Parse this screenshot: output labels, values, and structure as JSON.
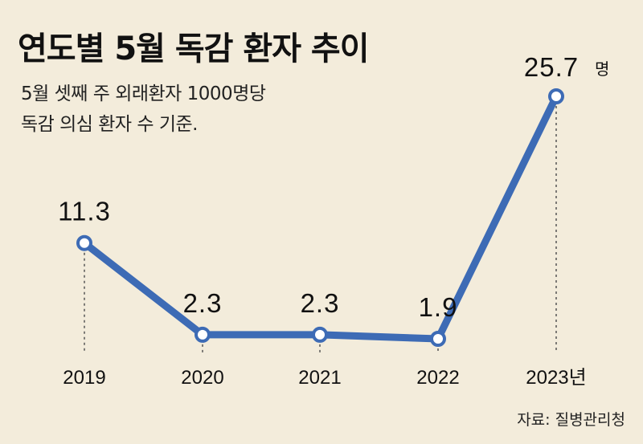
{
  "title": "연도별 5월 독감 환자 추이",
  "subtitle_lines": [
    "5월 셋째 주 외래환자 1000명당",
    "독감 의심 환자 수 기준."
  ],
  "source": "자료: 질병관리청",
  "colors": {
    "background": "#f3ecdb",
    "line": "#3d6bb5",
    "text": "#111111"
  },
  "chart_data": {
    "type": "line",
    "categories": [
      "2019",
      "2020",
      "2021",
      "2022",
      "2023"
    ],
    "tick_labels": [
      "2019",
      "2020",
      "2021",
      "2022",
      "2023년"
    ],
    "values": [
      11.3,
      2.3,
      2.3,
      1.9,
      25.7
    ],
    "value_labels": [
      "11.3",
      "2.3",
      "2.3",
      "1.9",
      "25.7"
    ],
    "value_unit": "명",
    "title": "연도별 5월 독감 환자 추이",
    "xlabel": "",
    "ylabel": "",
    "grid": false
  }
}
